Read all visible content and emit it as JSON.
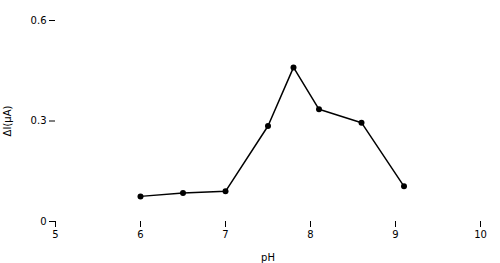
{
  "chart_data": {
    "type": "line",
    "x": [
      6.0,
      6.5,
      7.0,
      7.5,
      7.8,
      8.1,
      8.6,
      9.1
    ],
    "values": [
      0.075,
      0.085,
      0.09,
      0.285,
      0.46,
      0.335,
      0.295,
      0.105
    ],
    "xlabel": "pH",
    "ylabel": "ΔI(μA)",
    "xlim": [
      5,
      10
    ],
    "ylim": [
      0,
      0.6
    ],
    "xticks": [
      5,
      6,
      7,
      8,
      9,
      10
    ],
    "yticks": [
      0,
      0.3,
      0.6
    ],
    "marker": "o",
    "grid": false
  }
}
